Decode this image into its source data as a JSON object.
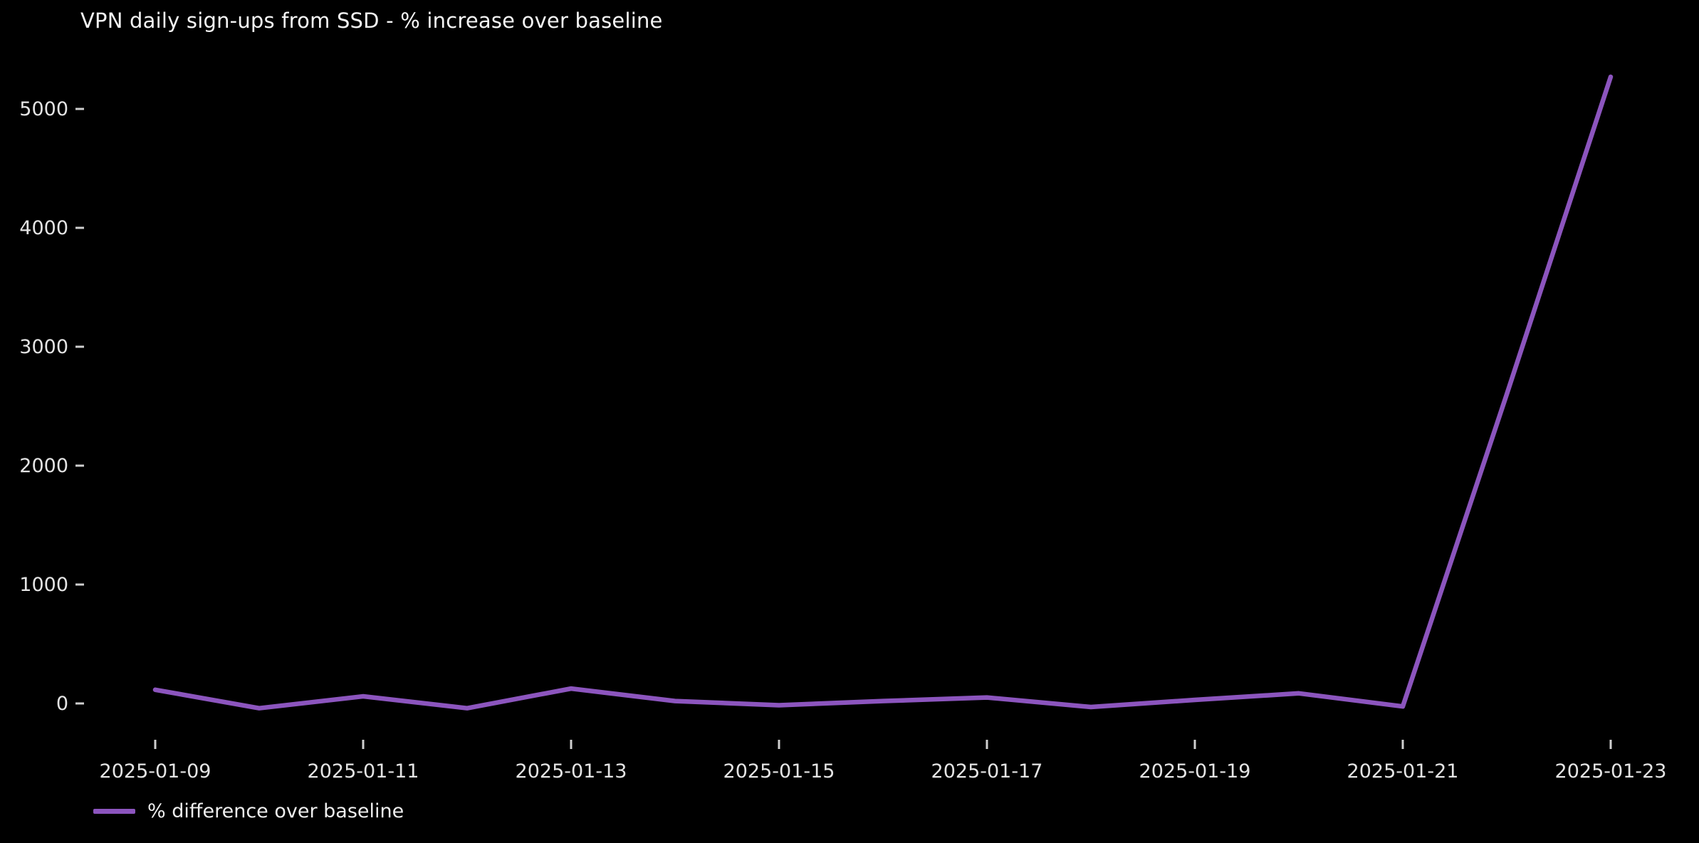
{
  "page": {
    "background_color": "#000000",
    "text_color": "#f5f5f5",
    "tick_color": "#cfcfcf"
  },
  "chart_data": {
    "type": "line",
    "title": "VPN daily sign-ups from SSD - % increase over baseline",
    "xlabel": "",
    "ylabel": "",
    "x": [
      "2025-01-09",
      "2025-01-10",
      "2025-01-11",
      "2025-01-12",
      "2025-01-13",
      "2025-01-14",
      "2025-01-15",
      "2025-01-16",
      "2025-01-17",
      "2025-01-18",
      "2025-01-19",
      "2025-01-20",
      "2025-01-21",
      "2025-01-22",
      "2025-01-23"
    ],
    "series": [
      {
        "name": "% difference over baseline",
        "color": "#8c55be",
        "values": [
          115,
          -40,
          60,
          -40,
          125,
          20,
          -15,
          20,
          50,
          -30,
          30,
          85,
          -25,
          2600,
          5270
        ]
      }
    ],
    "x_tick_labels": [
      "2025-01-09",
      "2025-01-11",
      "2025-01-13",
      "2025-01-15",
      "2025-01-17",
      "2025-01-19",
      "2025-01-21",
      "2025-01-23"
    ],
    "y_ticks": [
      0,
      1000,
      2000,
      3000,
      4000,
      5000
    ],
    "ylim": [
      -305,
      5535
    ],
    "grid": false,
    "legend_position": "below-left",
    "background": "#000000"
  },
  "legend": {
    "label": "% difference over baseline",
    "swatch_color": "#8c55be"
  }
}
